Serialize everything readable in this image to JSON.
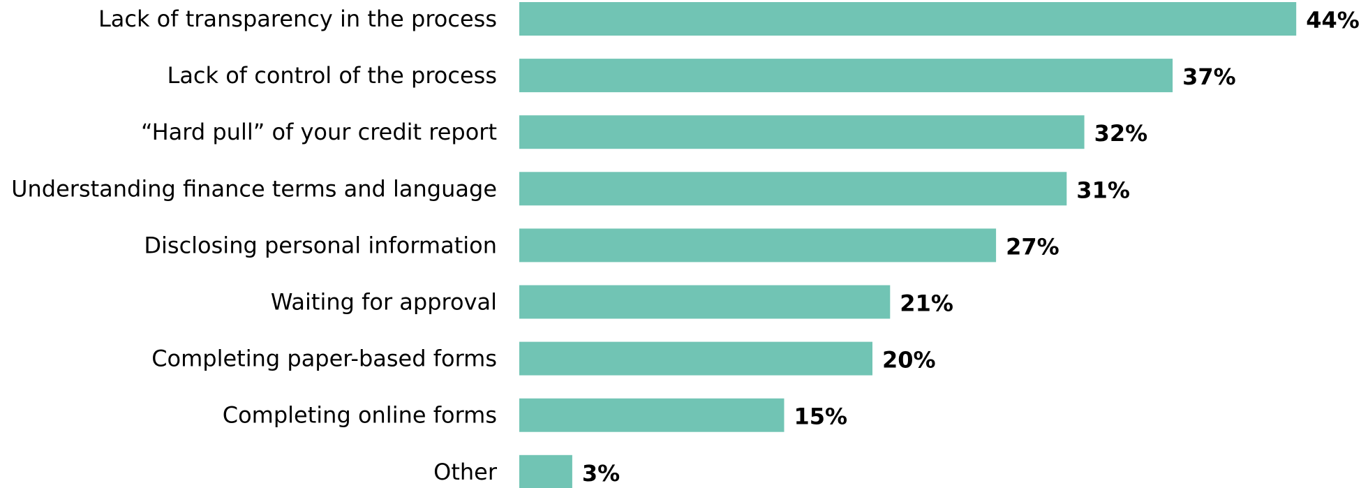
{
  "chart_data": {
    "type": "bar",
    "orientation": "horizontal",
    "title": "",
    "xlabel": "",
    "ylabel": "",
    "categories": [
      "Lack of transparency in the process",
      "Lack of control of the process",
      "“Hard pull” of your credit report",
      "Understanding finance terms and language",
      "Disclosing personal information",
      "Waiting for approval",
      "Completing paper-based forms",
      "Completing online forms",
      "Other"
    ],
    "values": [
      44,
      37,
      32,
      31,
      27,
      21,
      20,
      15,
      3
    ],
    "value_labels": [
      "44%",
      "37%",
      "32%",
      "31%",
      "27%",
      "21%",
      "20%",
      "15%",
      "3%"
    ],
    "unit": "%",
    "bar_color": "#71c4b4",
    "grid": false,
    "legend": "none"
  }
}
